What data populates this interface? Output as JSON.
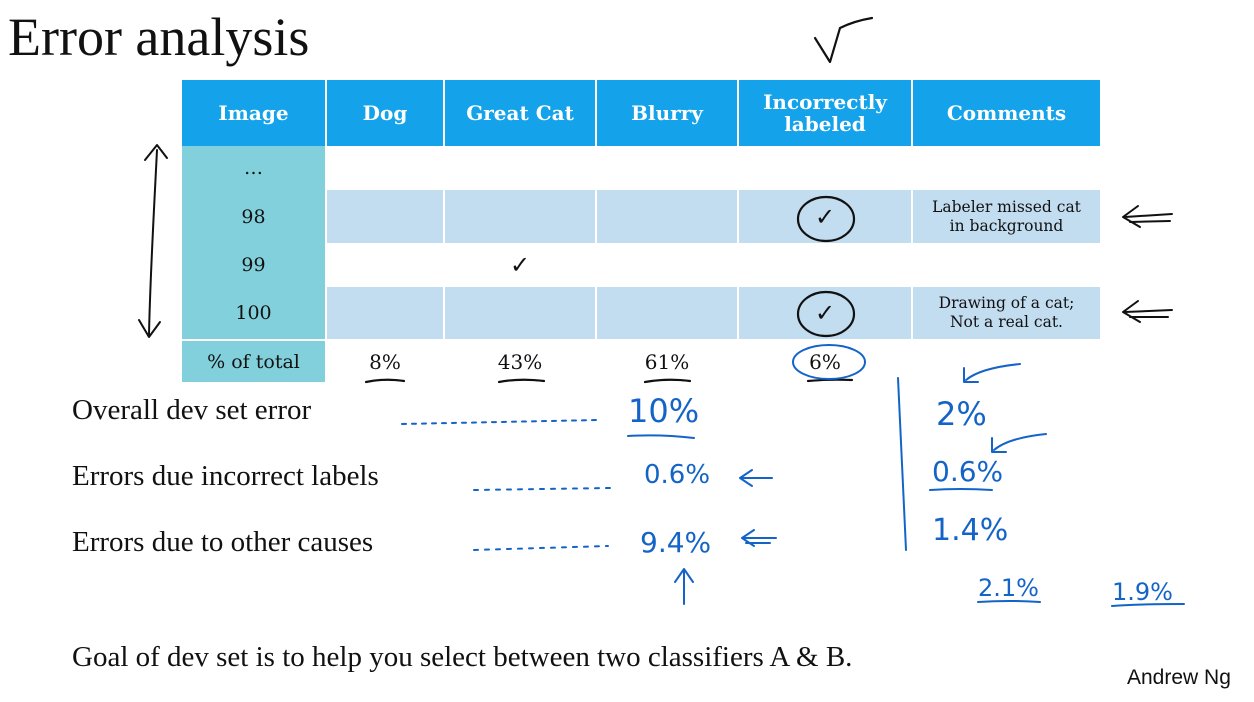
{
  "title": "Error analysis",
  "table": {
    "headers": [
      "Image",
      "Dog",
      "Great Cat",
      "Blurry",
      "Incorrectly labeled",
      "Comments"
    ],
    "header_bg": "#14a3ea",
    "rows": [
      {
        "image": "…",
        "dog": "",
        "great_cat": "",
        "blurry": "",
        "incorrect": "",
        "comment": ""
      },
      {
        "image": "98",
        "dog": "",
        "great_cat": "",
        "blurry": "",
        "incorrect": "✓",
        "comment_line1": "Labeler missed cat",
        "comment_line2": "in background"
      },
      {
        "image": "99",
        "dog": "",
        "great_cat": "✓",
        "blurry": "",
        "incorrect": "",
        "comment": ""
      },
      {
        "image": "100",
        "dog": "",
        "great_cat": "",
        "blurry": "",
        "incorrect": "✓",
        "comment_line1": "Drawing of a cat;",
        "comment_line2": "Not a real cat."
      }
    ],
    "totals": {
      "label": "% of total",
      "dog": "8%",
      "great_cat": "43%",
      "blurry": "61%",
      "incorrect": "6%"
    }
  },
  "breakdown": {
    "overall_label": "Overall dev set error",
    "incorrect_label": "Errors due incorrect labels",
    "other_label": "Errors due to other causes",
    "handwritten_left": {
      "overall": "10%",
      "incorrect": "0.6%",
      "other": "9.4%"
    },
    "handwritten_right": {
      "overall": "2%",
      "incorrect": "0.6%",
      "other": "1.4%",
      "extra_a": "2.1%",
      "extra_b": "1.9%"
    }
  },
  "goal": "Goal of dev set is to help you select between two classifiers A & B.",
  "author": "Andrew Ng",
  "colors": {
    "ink": "#1464c8",
    "image_col": "#82d0dc",
    "shaded_row": "#c2dcf0"
  }
}
